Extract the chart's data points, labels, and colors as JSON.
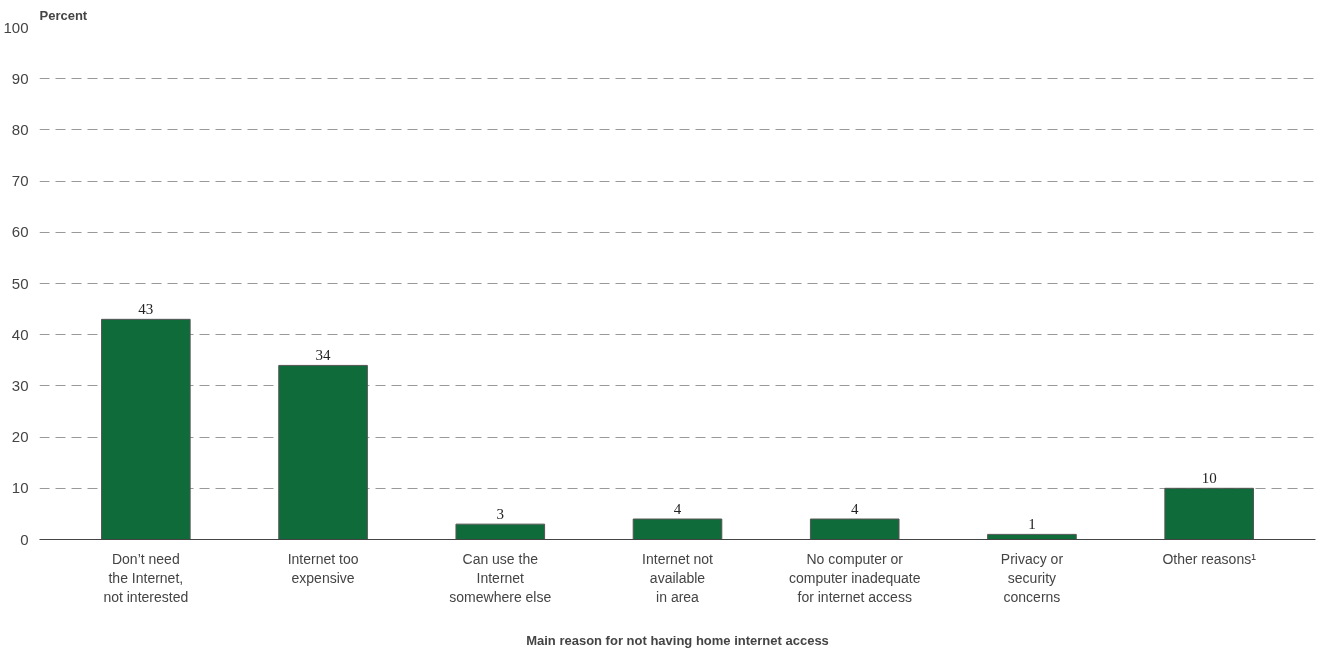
{
  "chart_data": {
    "type": "bar",
    "ylabel": "Percent",
    "xlabel": "Main reason for not having home internet access",
    "categories": [
      "Don’t need\nthe Internet,\nnot interested",
      "Internet too\nexpensive",
      "Can use the\nInternet\nsomewhere else",
      "Internet not\navailable\nin area",
      "No computer or\ncomputer inadequate\nfor internet access",
      "Privacy or\nsecurity\nconcerns",
      "Other reasons¹"
    ],
    "values": [
      43,
      34,
      3,
      4,
      4,
      1,
      10
    ],
    "color": "#106b3b",
    "ylim": [
      0,
      100
    ],
    "yticks": [
      0,
      10,
      20,
      30,
      40,
      50,
      60,
      70,
      80,
      90,
      100
    ],
    "grid": "y",
    "data_labels": true
  }
}
